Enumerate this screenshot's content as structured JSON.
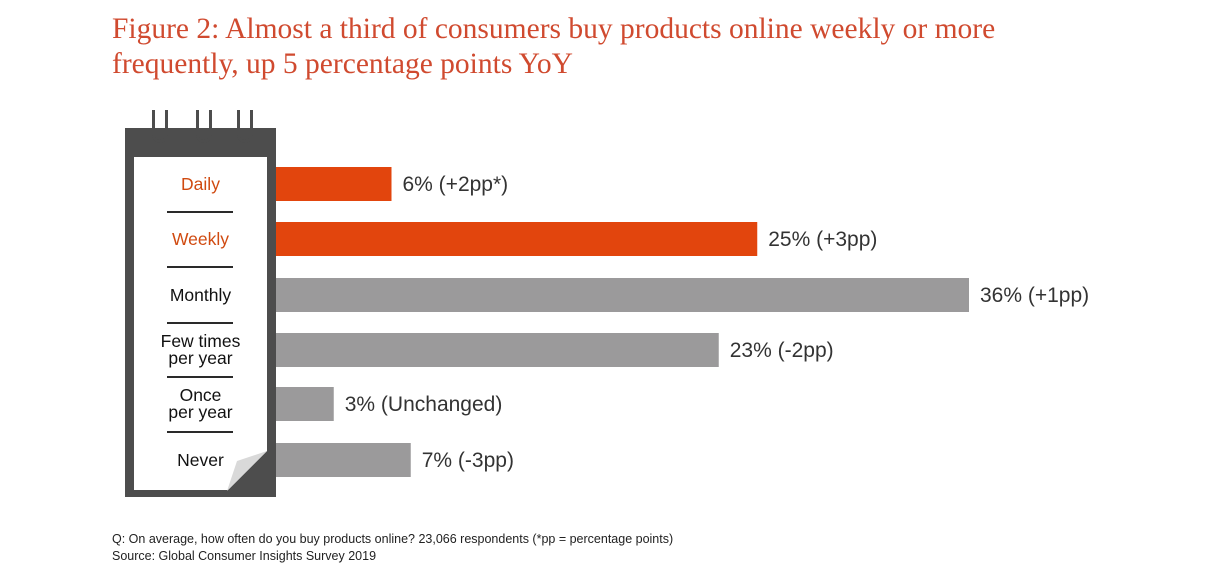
{
  "chart_data": {
    "type": "bar",
    "orientation": "horizontal",
    "title_lines": [
      "Figure 2: Almost a third of consumers buy products online weekly or more",
      "frequently, up 5 percentage points YoY"
    ],
    "categories": [
      [
        "Daily"
      ],
      [
        "Weekly"
      ],
      [
        "Monthly"
      ],
      [
        "Few times",
        "per year"
      ],
      [
        "Once",
        "per year"
      ],
      [
        "Never"
      ]
    ],
    "values": [
      6,
      25,
      36,
      23,
      3,
      7
    ],
    "labels": [
      "6% (+2pp*)",
      "25% (+3pp)",
      "36% (+1pp)",
      "23% (-2pp)",
      "3% (Unchanged)",
      "7% (-3pp)"
    ],
    "highlighted": [
      true,
      true,
      false,
      false,
      false,
      false
    ],
    "xlim": [
      0,
      36
    ],
    "colors": {
      "highlight": "#e2450d",
      "default": "#9b9a9b",
      "title": "#d04a2f"
    }
  },
  "footnotes": {
    "question": "Q: On average, how often do you buy products online?  23,066 respondents (*pp = percentage points)",
    "source": "Source: Global Consumer Insights Survey 2019"
  }
}
